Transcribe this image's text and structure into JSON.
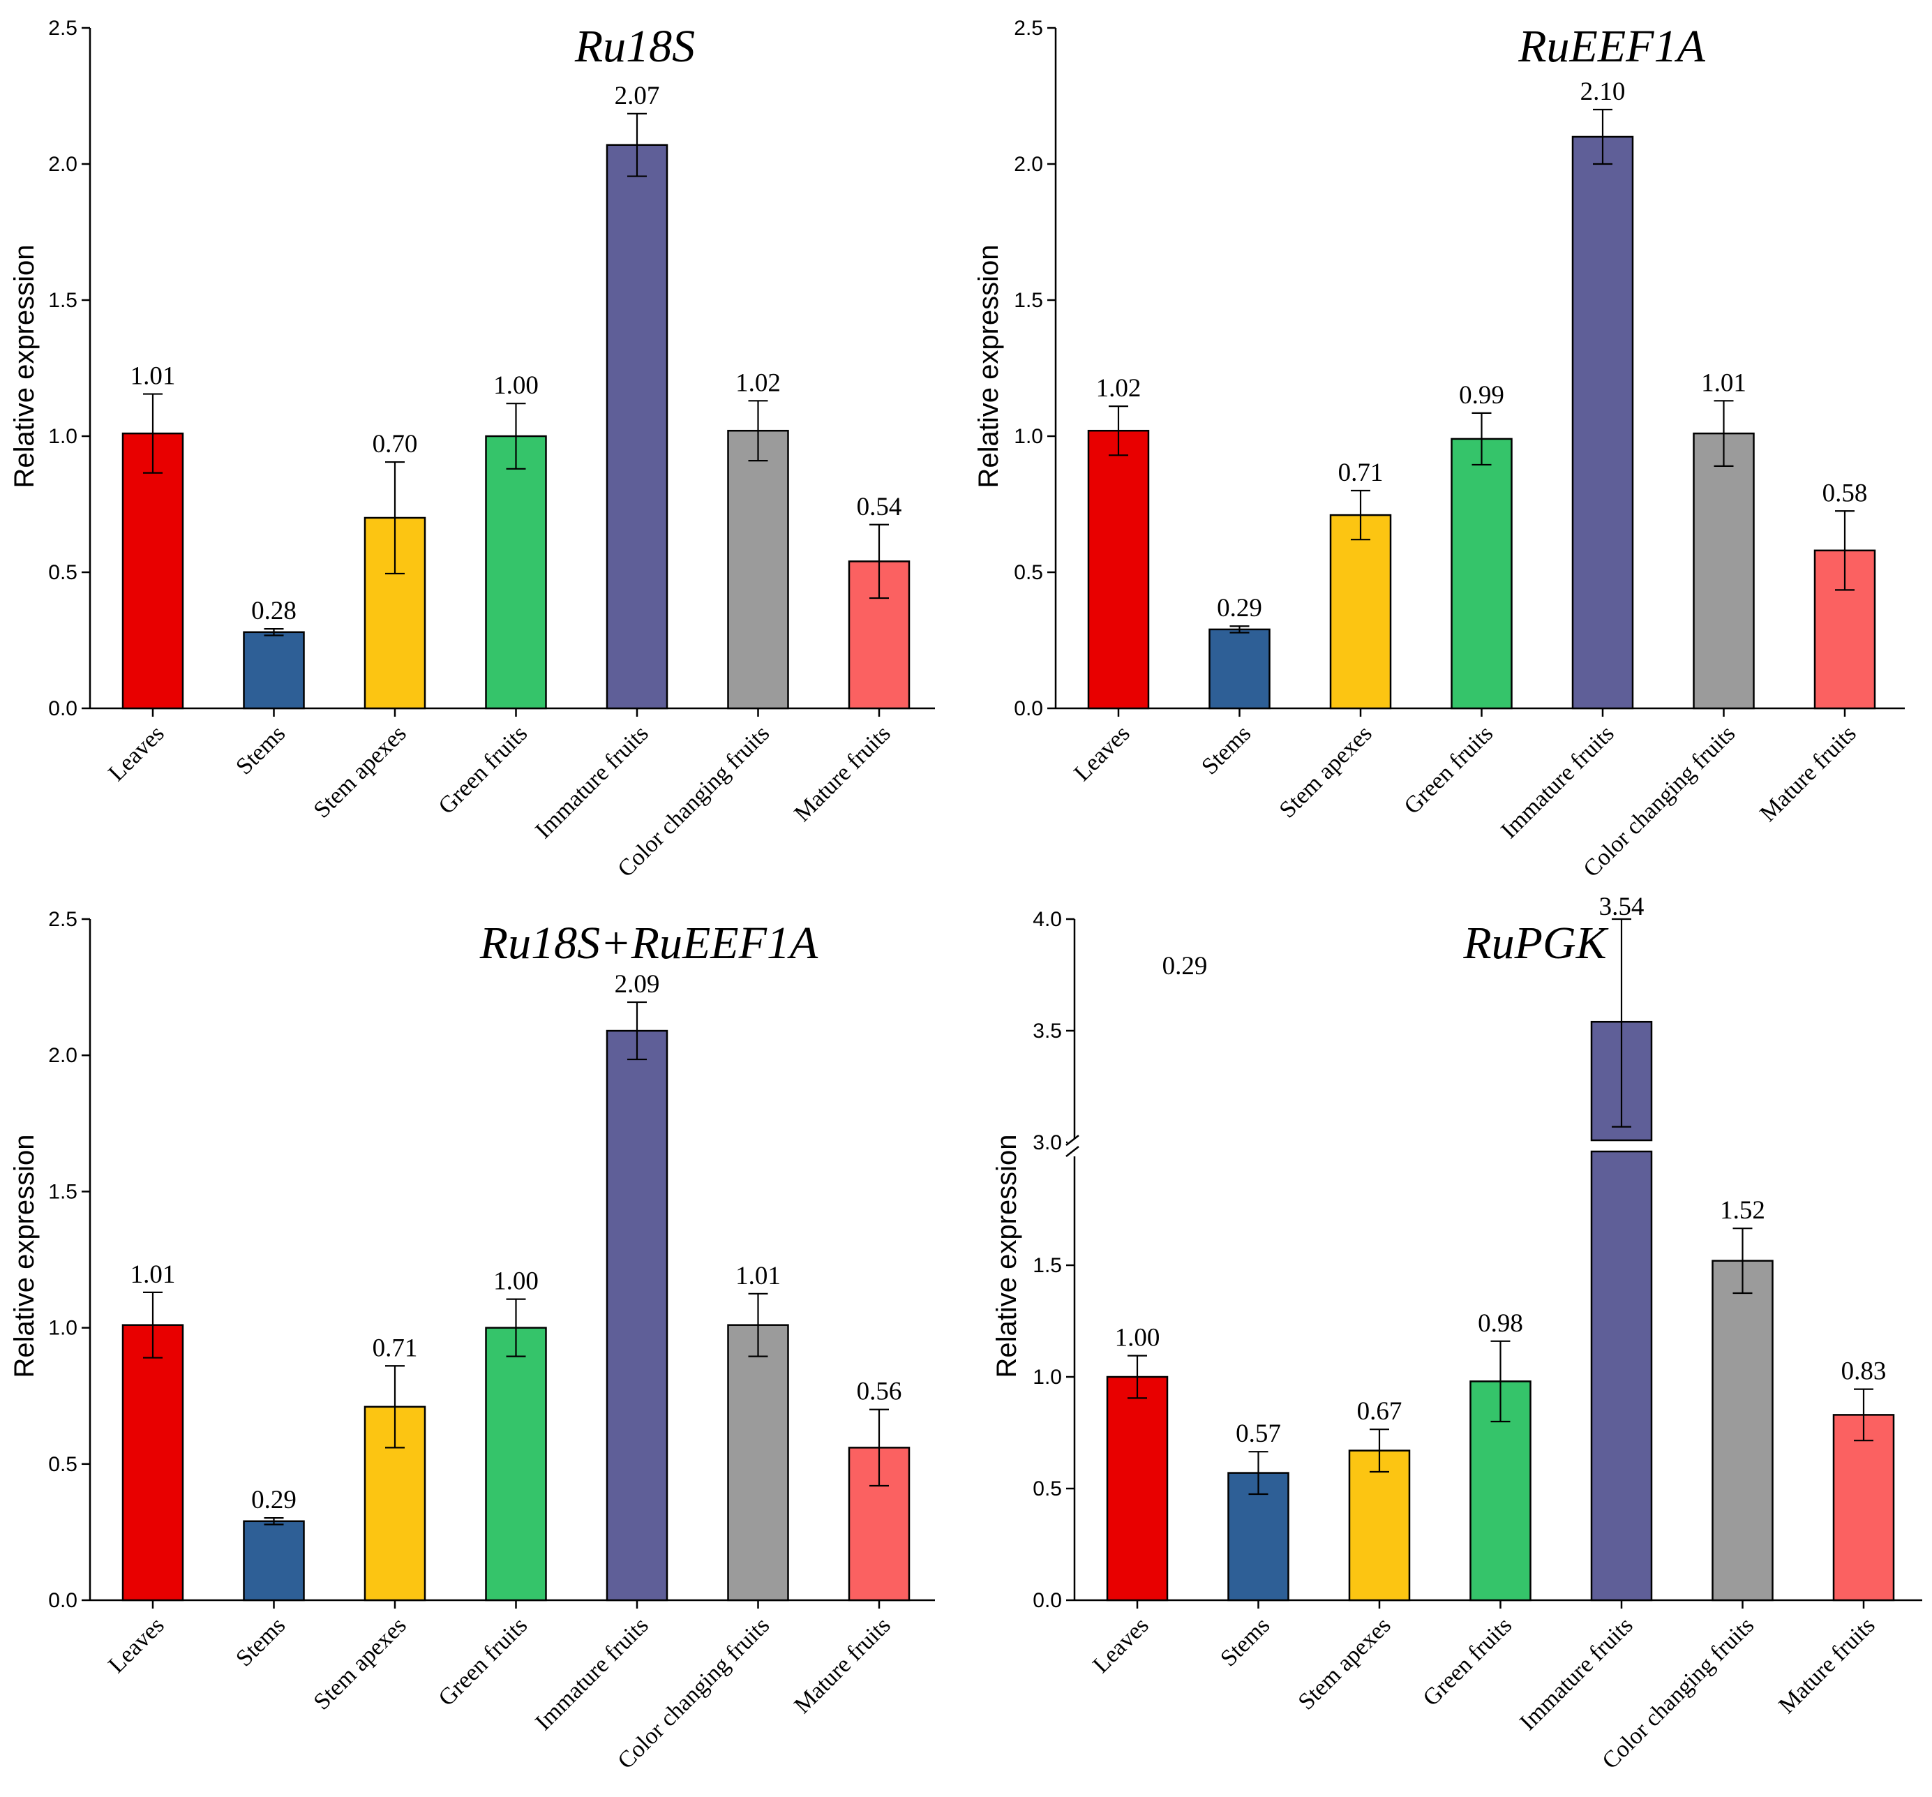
{
  "ylabel": "Relative expression",
  "chart_data": [
    {
      "type": "bar",
      "title": "Ru18S",
      "xlabel": "",
      "ylabel": "Relative expression",
      "ylim": [
        0,
        2.5
      ],
      "yticks": [
        "0.0",
        "0.5",
        "1.0",
        "1.5",
        "2.0",
        "2.5"
      ],
      "grid": false,
      "categories": [
        "Leaves",
        "Stems",
        "Stem apexes",
        "Green fruits",
        "Immature fruits",
        "Color changing fruits",
        "Mature fruits"
      ],
      "values": [
        1.01,
        0.28,
        0.7,
        1.0,
        2.07,
        1.02,
        0.54
      ],
      "value_labels": [
        "1.01",
        "0.28",
        "0.70",
        "1.00",
        "2.07",
        "1.02",
        "0.54"
      ],
      "errors": [
        0.145,
        0.012,
        0.205,
        0.12,
        0.115,
        0.11,
        0.135
      ],
      "colors": [
        "#e80000",
        "#2e5f96",
        "#fcc512",
        "#35c46a",
        "#5f5f98",
        "#9b9b9b",
        "#fb6161"
      ]
    },
    {
      "type": "bar",
      "title": "RuEEF1A",
      "xlabel": "",
      "ylabel": "Relative expression",
      "ylim": [
        0,
        2.5
      ],
      "yticks": [
        "0.0",
        "0.5",
        "1.0",
        "1.5",
        "2.0",
        "2.5"
      ],
      "grid": false,
      "categories": [
        "Leaves",
        "Stems",
        "Stem apexes",
        "Green fruits",
        "Immature fruits",
        "Color changing fruits",
        "Mature fruits"
      ],
      "values": [
        1.02,
        0.29,
        0.71,
        0.99,
        2.1,
        1.01,
        0.58
      ],
      "value_labels": [
        "1.02",
        "0.29",
        "0.71",
        "0.99",
        "2.10",
        "1.01",
        "0.58"
      ],
      "errors": [
        0.09,
        0.012,
        0.09,
        0.095,
        0.1,
        0.12,
        0.145
      ],
      "colors": [
        "#e80000",
        "#2e5f96",
        "#fcc512",
        "#35c46a",
        "#5f5f98",
        "#9b9b9b",
        "#fb6161"
      ]
    },
    {
      "type": "bar",
      "title": "Ru18S+RuEEF1A",
      "xlabel": "",
      "ylabel": "Relative expression",
      "ylim": [
        0,
        2.5
      ],
      "yticks": [
        "0.0",
        "0.5",
        "1.0",
        "1.5",
        "2.0",
        "2.5"
      ],
      "grid": false,
      "categories": [
        "Leaves",
        "Stems",
        "Stem apexes",
        "Green fruits",
        "Immature fruits",
        "Color changing fruits",
        "Mature fruits"
      ],
      "values": [
        1.01,
        0.29,
        0.71,
        1.0,
        2.09,
        1.01,
        0.56
      ],
      "value_labels": [
        "1.01",
        "0.29",
        "0.71",
        "1.00",
        "2.09",
        "1.01",
        "0.56"
      ],
      "errors": [
        0.12,
        0.012,
        0.15,
        0.105,
        0.105,
        0.115,
        0.14
      ],
      "colors": [
        "#e80000",
        "#2e5f96",
        "#fcc512",
        "#35c46a",
        "#5f5f98",
        "#9b9b9b",
        "#fb6161"
      ]
    },
    {
      "type": "bar",
      "title": "RuPGK",
      "xlabel": "",
      "ylabel": "Relative expression",
      "ylim": [
        0,
        4.0
      ],
      "axis_break": [
        2.0,
        3.0
      ],
      "yticks": [
        "0.0",
        "0.5",
        "1.0",
        "1.5",
        "3.0",
        "3.5",
        "4.0"
      ],
      "grid": false,
      "categories": [
        "Leaves",
        "Stems",
        "Stem apexes",
        "Green fruits",
        "Immature fruits",
        "Color changing fruits",
        "Mature fruits"
      ],
      "values": [
        1.0,
        0.57,
        0.67,
        0.98,
        3.54,
        1.52,
        0.83
      ],
      "value_labels": [
        "1.00",
        "0.57",
        "0.67",
        "0.98",
        "3.54",
        "1.52",
        "0.83"
      ],
      "errors": [
        0.095,
        0.095,
        0.095,
        0.18,
        0.47,
        0.145,
        0.115
      ],
      "colors": [
        "#e80000",
        "#2e5f96",
        "#fcc512",
        "#35c46a",
        "#5f5f98",
        "#9b9b9b",
        "#fb6161"
      ],
      "stray_label": "0.29"
    }
  ]
}
